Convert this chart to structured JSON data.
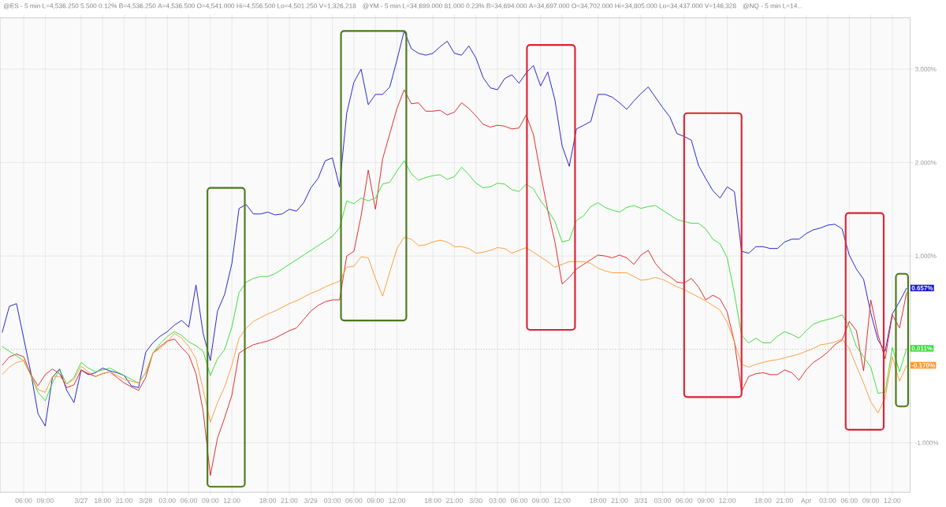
{
  "chart_data": {
    "type": "line",
    "annotations": [
      "@ES - 5 min L=4,536.250 5.500 0.12% B=4,536.250 A=4,536.500 O=4,541.000 Hi=4,556.500 Lo=4,501.250 V=1,326,218",
      "@YM - 5 min L=34,699.000 81.000 0.23% B=34,694.000 A=34,697.000 O=34,702.000 Hi=34,805.000 Lo=34,437.000 V=146,328",
      "@NQ - 5 min L=14..."
    ],
    "categories": [
      null,
      null,
      null,
      "06:00",
      null,
      null,
      "09:00",
      null,
      null,
      null,
      null,
      "3/27",
      null,
      null,
      "18:00",
      null,
      null,
      "21:00",
      null,
      null,
      "3/28",
      null,
      null,
      "03:00",
      null,
      null,
      "06:00",
      null,
      null,
      "09:00",
      null,
      null,
      "12:00",
      null,
      null,
      null,
      null,
      "18:00",
      null,
      null,
      "21:00",
      null,
      null,
      "3/29",
      null,
      null,
      "03:00",
      null,
      null,
      "06:00",
      null,
      null,
      "09:00",
      null,
      null,
      "12:00",
      null,
      null,
      null,
      null,
      "18:00",
      null,
      null,
      "21:00",
      null,
      null,
      "3/30",
      null,
      null,
      "03:00",
      null,
      null,
      "06:00",
      null,
      null,
      "09:00",
      null,
      null,
      "12:00",
      null,
      null,
      null,
      null,
      "18:00",
      null,
      null,
      "21:00",
      null,
      null,
      "3/31",
      null,
      null,
      "03:00",
      null,
      null,
      "06:00",
      null,
      null,
      "09:00",
      null,
      null,
      "12:00",
      null,
      null,
      null,
      null,
      "18:00",
      null,
      null,
      "21:00",
      null,
      null,
      "Apr",
      null,
      null,
      "03:00",
      null,
      null,
      "06:00",
      null,
      null,
      "09:00",
      null,
      null,
      "12:00",
      null,
      null
    ],
    "series": [
      {
        "color": "#1a1acc",
        "values": [
          0.18,
          0.46,
          0.49,
          0.12,
          -0.25,
          -0.69,
          -0.82,
          -0.3,
          -0.21,
          -0.44,
          -0.57,
          -0.22,
          -0.27,
          -0.25,
          -0.2,
          -0.23,
          -0.25,
          -0.28,
          -0.39,
          -0.41,
          -0.03,
          0.07,
          0.14,
          0.19,
          0.26,
          0.31,
          0.24,
          0.69,
          0.17,
          -0.12,
          0.41,
          0.59,
          0.92,
          1.51,
          1.55,
          1.45,
          1.45,
          1.47,
          1.44,
          1.45,
          1.5,
          1.48,
          1.57,
          1.73,
          1.83,
          2.02,
          2.05,
          1.74,
          2.53,
          2.86,
          3.0,
          2.62,
          2.73,
          2.73,
          2.81,
          3.1,
          3.41,
          3.22,
          3.17,
          3.15,
          3.17,
          3.24,
          3.3,
          3.17,
          3.15,
          3.25,
          3.12,
          2.91,
          2.8,
          2.78,
          2.9,
          2.94,
          2.85,
          2.96,
          3.04,
          2.82,
          2.97,
          2.67,
          2.18,
          1.96,
          2.36,
          2.4,
          2.44,
          2.73,
          2.73,
          2.7,
          2.64,
          2.57,
          2.66,
          2.74,
          2.81,
          2.7,
          2.59,
          2.49,
          2.31,
          2.28,
          2.24,
          1.97,
          1.83,
          1.7,
          1.62,
          1.74,
          1.69,
          1.05,
          1.03,
          1.1,
          1.1,
          1.08,
          1.08,
          1.15,
          1.18,
          1.18,
          1.24,
          1.28,
          1.3,
          1.33,
          1.34,
          1.29,
          1.01,
          0.86,
          0.75,
          0.39,
          0.1,
          -0.02,
          0.38,
          0.51,
          0.657
        ],
        "value_labels": [
          null,
          null,
          null,
          null,
          null,
          null,
          null,
          null,
          null,
          null,
          null,
          null,
          null,
          null,
          null,
          null,
          null,
          null,
          null,
          null,
          null,
          null,
          null,
          null,
          null,
          null,
          null,
          null,
          null,
          null,
          null,
          null,
          null,
          null,
          null,
          null,
          null,
          null,
          null,
          null,
          null,
          null,
          null,
          null,
          null,
          null,
          null,
          null,
          null,
          null,
          null,
          null,
          null,
          null,
          null,
          null,
          null,
          null,
          null,
          null,
          null,
          null,
          null,
          null,
          null,
          null,
          null,
          null,
          null,
          null,
          null,
          null,
          null,
          null,
          null,
          null,
          null,
          null,
          null,
          null,
          null,
          null,
          null,
          null,
          null,
          null,
          null,
          null,
          null,
          null,
          null,
          null,
          null,
          null,
          null,
          null,
          null,
          null,
          null,
          null,
          null,
          null,
          null,
          null,
          null,
          null,
          null,
          null,
          null,
          null,
          null,
          null,
          null,
          null,
          null,
          null,
          null,
          null,
          null,
          null,
          null,
          null,
          null,
          null,
          null,
          null,
          "0.657%"
        ]
      },
      {
        "color": "#e02020",
        "values": [
          -0.17,
          -0.08,
          -0.05,
          -0.08,
          -0.27,
          -0.39,
          -0.27,
          -0.21,
          -0.26,
          -0.41,
          -0.38,
          -0.22,
          -0.26,
          -0.29,
          -0.26,
          -0.24,
          -0.3,
          -0.36,
          -0.4,
          -0.44,
          -0.3,
          -0.04,
          0.03,
          0.09,
          0.11,
          0.02,
          -0.06,
          -0.26,
          -0.66,
          -1.35,
          -0.95,
          -0.73,
          -0.49,
          -0.04,
          0.01,
          0.05,
          0.07,
          0.09,
          0.12,
          0.16,
          0.2,
          0.23,
          0.32,
          0.41,
          0.47,
          0.51,
          0.53,
          0.53,
          1.0,
          1.05,
          1.43,
          1.92,
          1.5,
          2.04,
          2.31,
          2.58,
          2.78,
          2.63,
          2.64,
          2.55,
          2.55,
          2.56,
          2.51,
          2.54,
          2.64,
          2.58,
          2.5,
          2.41,
          2.38,
          2.4,
          2.39,
          2.36,
          2.37,
          2.51,
          2.3,
          1.88,
          1.49,
          1.15,
          0.7,
          0.77,
          0.86,
          0.91,
          0.96,
          1.01,
          1.0,
          0.98,
          1.01,
          0.98,
          0.91,
          1.01,
          1.06,
          0.92,
          0.83,
          0.78,
          0.72,
          0.71,
          0.76,
          0.67,
          0.53,
          0.58,
          0.54,
          0.4,
          0.08,
          -0.45,
          -0.29,
          -0.26,
          -0.25,
          -0.27,
          -0.27,
          -0.22,
          -0.25,
          -0.33,
          -0.22,
          -0.14,
          -0.09,
          -0.03,
          0.05,
          0.1,
          0.3,
          0.2,
          -0.23,
          0.53,
          0.16,
          -0.1,
          0.37,
          0.23,
          0.61
        ]
      },
      {
        "color": "#33dd33",
        "values": [
          0.03,
          -0.02,
          -0.07,
          -0.12,
          -0.28,
          -0.46,
          -0.55,
          -0.36,
          -0.22,
          -0.37,
          -0.3,
          -0.14,
          -0.2,
          -0.24,
          -0.22,
          -0.2,
          -0.24,
          -0.28,
          -0.32,
          -0.36,
          -0.25,
          -0.04,
          0.06,
          0.14,
          0.19,
          0.15,
          0.08,
          0.04,
          -0.02,
          -0.28,
          -0.1,
          0.0,
          0.24,
          0.61,
          0.72,
          0.76,
          0.78,
          0.78,
          0.81,
          0.86,
          0.91,
          0.96,
          1.01,
          1.06,
          1.11,
          1.16,
          1.21,
          1.3,
          1.59,
          1.56,
          1.62,
          1.59,
          1.62,
          1.77,
          1.79,
          1.91,
          2.02,
          1.88,
          1.81,
          1.84,
          1.86,
          1.87,
          1.82,
          1.85,
          1.95,
          1.87,
          1.78,
          1.73,
          1.74,
          1.78,
          1.77,
          1.71,
          1.69,
          1.77,
          1.72,
          1.59,
          1.49,
          1.37,
          1.15,
          1.17,
          1.38,
          1.43,
          1.53,
          1.57,
          1.52,
          1.49,
          1.47,
          1.52,
          1.54,
          1.51,
          1.53,
          1.54,
          1.49,
          1.44,
          1.39,
          1.37,
          1.35,
          1.35,
          1.29,
          1.18,
          1.13,
          0.98,
          0.6,
          0.15,
          0.07,
          0.12,
          0.07,
          0.07,
          0.14,
          0.19,
          0.16,
          0.12,
          0.2,
          0.27,
          0.3,
          0.32,
          0.34,
          0.37,
          0.25,
          0.03,
          -0.08,
          -0.19,
          -0.47,
          -0.46,
          0.02,
          -0.24,
          0.011
        ],
        "value_labels": [
          null,
          null,
          null,
          null,
          null,
          null,
          null,
          null,
          null,
          null,
          null,
          null,
          null,
          null,
          null,
          null,
          null,
          null,
          null,
          null,
          null,
          null,
          null,
          null,
          null,
          null,
          null,
          null,
          null,
          null,
          null,
          null,
          null,
          null,
          null,
          null,
          null,
          null,
          null,
          null,
          null,
          null,
          null,
          null,
          null,
          null,
          null,
          null,
          null,
          null,
          null,
          null,
          null,
          null,
          null,
          null,
          null,
          null,
          null,
          null,
          null,
          null,
          null,
          null,
          null,
          null,
          null,
          null,
          null,
          null,
          null,
          null,
          null,
          null,
          null,
          null,
          null,
          null,
          null,
          null,
          null,
          null,
          null,
          null,
          null,
          null,
          null,
          null,
          null,
          null,
          null,
          null,
          null,
          null,
          null,
          null,
          null,
          null,
          null,
          null,
          null,
          null,
          null,
          null,
          null,
          null,
          null,
          null,
          null,
          null,
          null,
          null,
          null,
          null,
          null,
          null,
          null,
          null,
          null,
          null,
          null,
          null,
          null,
          null,
          null,
          null,
          "0.011%"
        ]
      },
      {
        "color": "#ff9933",
        "values": [
          -0.27,
          -0.19,
          -0.14,
          -0.12,
          -0.28,
          -0.43,
          -0.46,
          -0.29,
          -0.29,
          -0.37,
          -0.32,
          -0.18,
          -0.24,
          -0.29,
          -0.26,
          -0.24,
          -0.28,
          -0.32,
          -0.34,
          -0.36,
          -0.25,
          -0.04,
          0.01,
          0.08,
          0.17,
          0.12,
          0.03,
          -0.1,
          -0.43,
          -0.78,
          -0.57,
          -0.4,
          -0.17,
          0.12,
          0.23,
          0.3,
          0.34,
          0.38,
          0.41,
          0.45,
          0.49,
          0.52,
          0.56,
          0.6,
          0.63,
          0.67,
          0.7,
          0.73,
          0.88,
          0.89,
          0.99,
          0.98,
          0.76,
          0.57,
          0.83,
          1.08,
          1.2,
          1.18,
          1.11,
          1.12,
          1.15,
          1.17,
          1.15,
          1.1,
          1.1,
          1.08,
          1.03,
          1.04,
          1.06,
          1.09,
          1.08,
          1.03,
          1.06,
          1.09,
          1.04,
          0.99,
          0.94,
          0.88,
          0.91,
          0.94,
          0.94,
          0.94,
          0.92,
          0.87,
          0.84,
          0.82,
          0.82,
          0.82,
          0.78,
          0.74,
          0.75,
          0.77,
          0.75,
          0.71,
          0.67,
          0.64,
          0.6,
          0.56,
          0.52,
          0.47,
          0.42,
          0.29,
          0.08,
          -0.16,
          -0.19,
          -0.16,
          -0.14,
          -0.12,
          -0.11,
          -0.09,
          -0.07,
          -0.05,
          -0.02,
          0.01,
          0.05,
          0.06,
          0.08,
          0.11,
          0.01,
          -0.18,
          -0.36,
          -0.56,
          -0.68,
          -0.52,
          -0.08,
          -0.34,
          -0.17
        ],
        "value_labels": [
          null,
          null,
          null,
          null,
          null,
          null,
          null,
          null,
          null,
          null,
          null,
          null,
          null,
          null,
          null,
          null,
          null,
          null,
          null,
          null,
          null,
          null,
          null,
          null,
          null,
          null,
          null,
          null,
          null,
          null,
          null,
          null,
          null,
          null,
          null,
          null,
          null,
          null,
          null,
          null,
          null,
          null,
          null,
          null,
          null,
          null,
          null,
          null,
          null,
          null,
          null,
          null,
          null,
          null,
          null,
          null,
          null,
          null,
          null,
          null,
          null,
          null,
          null,
          null,
          null,
          null,
          null,
          null,
          null,
          null,
          null,
          null,
          null,
          null,
          null,
          null,
          null,
          null,
          null,
          null,
          null,
          null,
          null,
          null,
          null,
          null,
          null,
          null,
          null,
          null,
          null,
          null,
          null,
          null,
          null,
          null,
          null,
          null,
          null,
          null,
          null,
          null,
          null,
          null,
          null,
          null,
          null,
          null,
          null,
          null,
          null,
          null,
          null,
          null,
          null,
          null,
          null,
          null,
          null,
          null,
          null,
          null,
          null,
          null,
          null,
          null,
          "-0.170%"
        ]
      }
    ],
    "ylim": [
      -1.53,
      3.55
    ],
    "yticks": [
      {
        "value": -1,
        "label": "-1.000%"
      },
      {
        "value": 1,
        "label": "1.000%"
      },
      {
        "value": 2,
        "label": "2.000%"
      },
      {
        "value": 3,
        "label": "3.000%"
      }
    ],
    "grid": true,
    "ref_lines": [
      {
        "axis": "y",
        "value": 0,
        "line_style": "dotted",
        "color": "#888888"
      }
    ]
  }
}
